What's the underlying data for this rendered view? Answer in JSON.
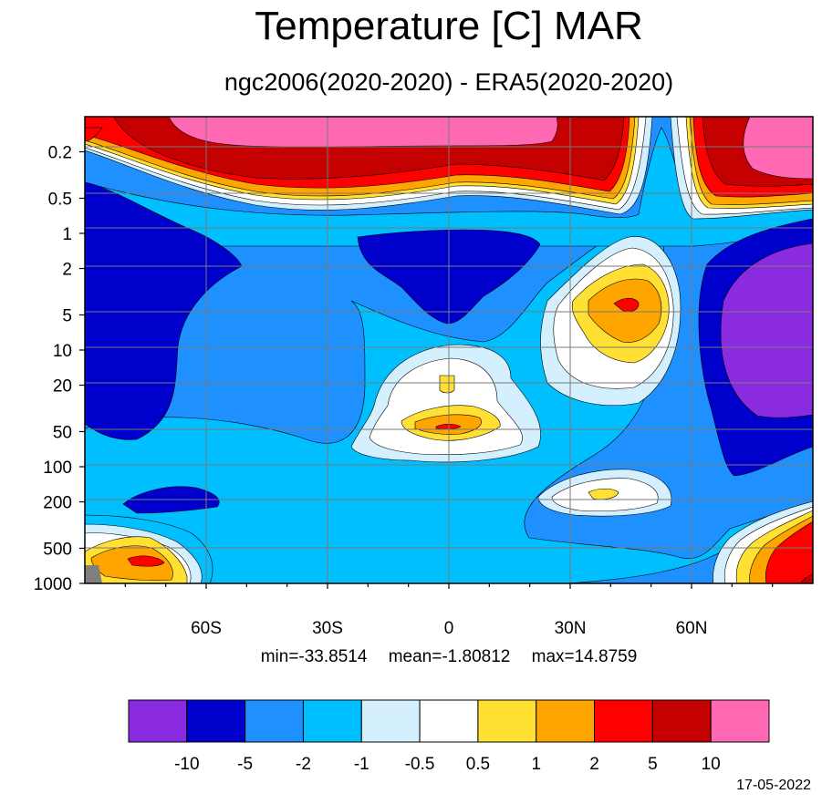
{
  "title": "Temperature [C] MAR",
  "subtitle": "ngc2006(2020-2020) - ERA5(2020-2020)",
  "stats": {
    "min": "min=-33.8514",
    "mean": "mean=-1.80812",
    "max": "max=14.8759"
  },
  "date": "17-05-2022",
  "chart_data": {
    "type": "heatmap",
    "title": "Temperature [C] MAR",
    "subtitle": "ngc2006(2020-2020) - ERA5(2020-2020)",
    "x_ticks": [
      "60S",
      "30S",
      "0",
      "30N",
      "60N"
    ],
    "x_tick_values": [
      -60,
      -30,
      0,
      30,
      60
    ],
    "xlim": [
      -90,
      90
    ],
    "y_scale": "log",
    "y_reversed": true,
    "y_ticks": [
      "0.2",
      "0.5",
      "1",
      "2",
      "5",
      "10",
      "20",
      "50",
      "100",
      "200",
      "500",
      "1000"
    ],
    "y_tick_values": [
      0.2,
      0.5,
      1,
      2,
      5,
      10,
      20,
      50,
      100,
      200,
      500,
      1000
    ],
    "ylim": [
      0.1,
      1000
    ],
    "grid": true,
    "colorbar": {
      "labels": [
        "-10",
        "-5",
        "-2",
        "-1",
        "-0.5",
        "0.5",
        "1",
        "2",
        "5",
        "10"
      ],
      "colors": [
        "#8a2be2",
        "#0000cd",
        "#1e90ff",
        "#00bfff",
        "#d4f0ff",
        "#ffffff",
        "#ffe033",
        "#ffa500",
        "#ff0000",
        "#c40000",
        "#ff69b4"
      ]
    }
  }
}
